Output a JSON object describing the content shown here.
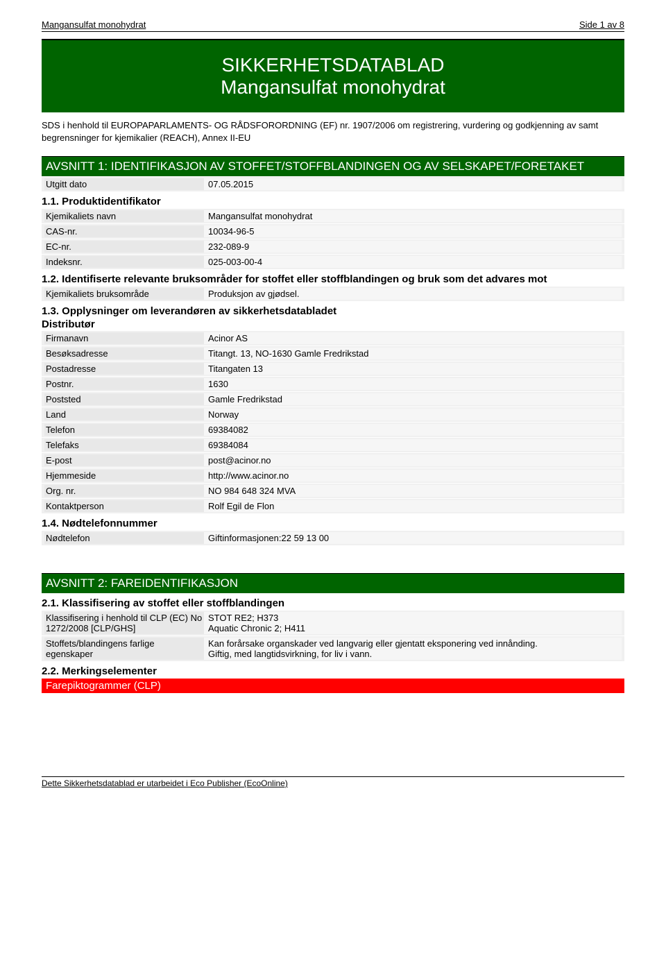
{
  "header": {
    "product": "Mangansulfat monohydrat",
    "page_label": "Side 1 av 8"
  },
  "hero": {
    "line1": "SIKKERHETSDATABLAD",
    "line2": "Mangansulfat monohydrat"
  },
  "intro": "SDS i henhold til EUROPAPARLAMENTS- OG RÅDSFORORDNING (EF) nr. 1907/2006 om registrering, vurdering og godkjenning av samt begrensninger for kjemikalier (REACH), Annex II-EU",
  "section1": {
    "title": "AVSNITT 1: IDENTIFIKASJON AV STOFFET/STOFFBLANDINGEN OG AV SELSKAPET/FORETAKET",
    "issued_label": "Utgitt dato",
    "issued_value": "07.05.2015",
    "s11": "1.1. Produktidentifikator",
    "rows11": [
      {
        "label": "Kjemikaliets navn",
        "value": "Mangansulfat monohydrat"
      },
      {
        "label": "CAS-nr.",
        "value": "10034-96-5"
      },
      {
        "label": "EC-nr.",
        "value": "232-089-9"
      },
      {
        "label": "Indeksnr.",
        "value": "025-003-00-4"
      }
    ],
    "s12": "1.2. Identifiserte relevante bruksområder for stoffet eller stoffblandingen og bruk som det advares mot",
    "rows12": [
      {
        "label": "Kjemikaliets bruksområde",
        "value": "Produksjon av gjødsel."
      }
    ],
    "s13": "1.3. Opplysninger om leverandøren av sikkerhetsdatabladet",
    "distributor": "Distributør",
    "rows13": [
      {
        "label": "Firmanavn",
        "value": "Acinor AS"
      },
      {
        "label": "Besøksadresse",
        "value": "Titangt. 13, NO-1630 Gamle Fredrikstad"
      },
      {
        "label": "Postadresse",
        "value": "Titangaten 13"
      },
      {
        "label": "Postnr.",
        "value": "1630"
      },
      {
        "label": "Poststed",
        "value": "Gamle Fredrikstad"
      },
      {
        "label": "Land",
        "value": "Norway"
      },
      {
        "label": "Telefon",
        "value": "69384082"
      },
      {
        "label": "Telefaks",
        "value": "69384084"
      },
      {
        "label": "E-post",
        "value": "post@acinor.no"
      },
      {
        "label": "Hjemmeside",
        "value": "http://www.acinor.no"
      },
      {
        "label": "Org. nr.",
        "value": "NO 984 648 324 MVA"
      },
      {
        "label": "Kontaktperson",
        "value": "Rolf Egil de Flon"
      }
    ],
    "s14": "1.4. Nødtelefonnummer",
    "rows14": [
      {
        "label": "Nødtelefon",
        "value": "Giftinformasjonen:22 59 13 00"
      }
    ]
  },
  "section2": {
    "title": "AVSNITT 2: FAREIDENTIFIKASJON",
    "s21": "2.1. Klassifisering av stoffet eller stoffblandingen",
    "rows21": [
      {
        "label": "Klassifisering i henhold til CLP (EC) No 1272/2008 [CLP/GHS]",
        "value": "STOT RE2; H373\nAquatic Chronic 2; H411"
      },
      {
        "label": "Stoffets/blandingens farlige egenskaper",
        "value": "Kan forårsake organskader ved langvarig eller gjentatt eksponering ved innånding.\nGiftig, med langtidsvirkning, for liv i vann."
      }
    ],
    "s22": "2.2. Merkingselementer",
    "red_bar": "Farepiktogrammer (CLP)"
  },
  "footer": "Dette Sikkerhetsdatablad er utarbeidet i Eco Publisher (EcoOnline)"
}
